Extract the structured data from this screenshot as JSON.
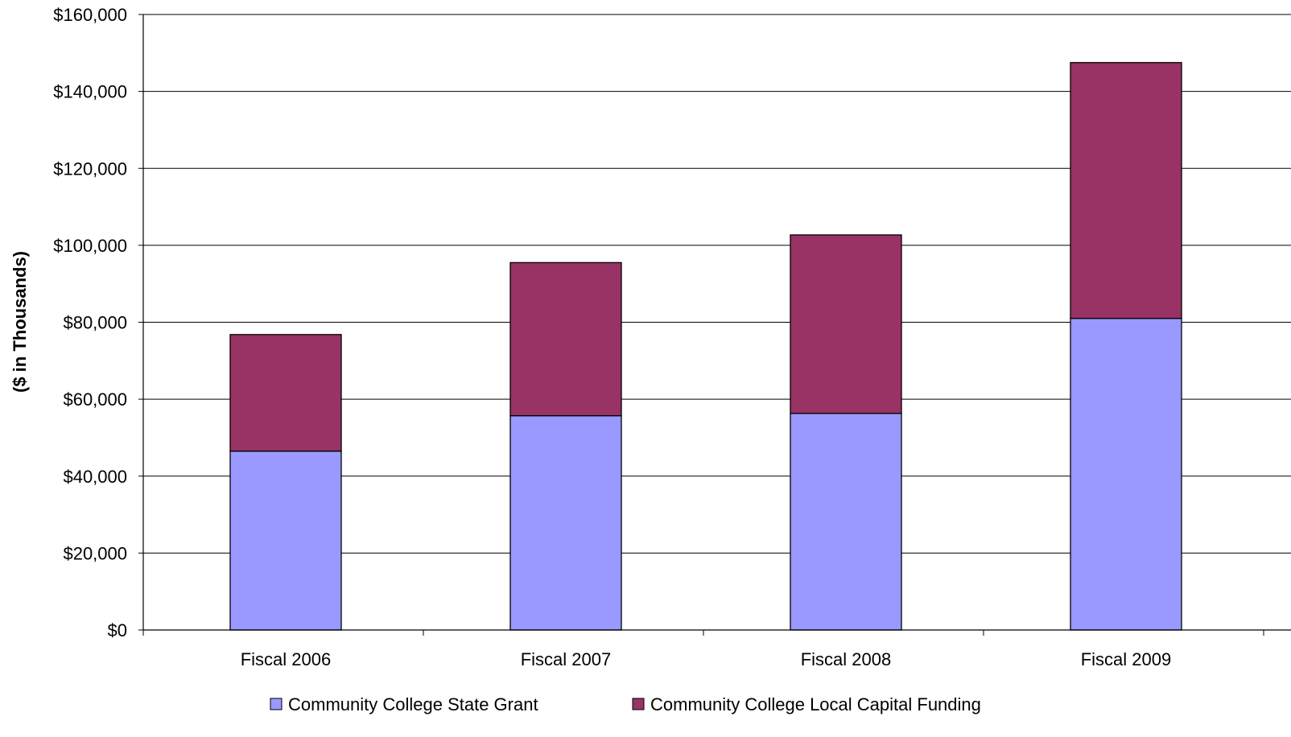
{
  "chart_data": {
    "type": "bar",
    "stacked": true,
    "title": "",
    "xlabel": "",
    "ylabel": "($ in Thousands)",
    "categories": [
      "Fiscal 2006",
      "Fiscal 2007",
      "Fiscal 2008",
      "Fiscal 2009"
    ],
    "series": [
      {
        "name": "Community College State Grant",
        "color": "#9999FF",
        "values": [
          46500,
          55700,
          56300,
          81000
        ]
      },
      {
        "name": "Community College Local Capital Funding",
        "color": "#993366",
        "values": [
          30300,
          39800,
          46400,
          66500
        ]
      }
    ],
    "ylim": [
      0,
      160000
    ],
    "yticks": [
      0,
      20000,
      40000,
      60000,
      80000,
      100000,
      120000,
      140000,
      160000
    ],
    "ytick_labels": [
      "$0",
      "$20,000",
      "$40,000",
      "$60,000",
      "$80,000",
      "$100,000",
      "$120,000",
      "$140,000",
      "$160,000"
    ],
    "grid": true,
    "legend_position": "bottom"
  }
}
